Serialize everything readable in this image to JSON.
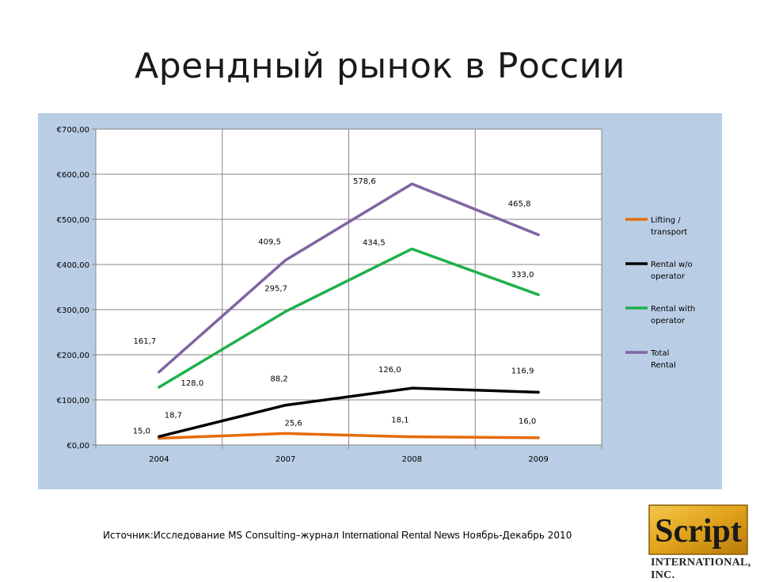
{
  "slide": {
    "title": "Арендный рынок в России",
    "source_part1": "Источник:Исследование MS Consulting–журнал ",
    "source_part2": "International Rental News",
    "source_part3": " Ноябрь-Декабрь 2010"
  },
  "logo": {
    "word": "Script",
    "caption": "INTERNATIONAL, INC."
  },
  "chart_data": {
    "type": "line",
    "categories": [
      "2004",
      "2007",
      "2008",
      "2009"
    ],
    "ylim": [
      0,
      700
    ],
    "yticks": [
      0,
      100,
      200,
      300,
      400,
      500,
      600,
      700
    ],
    "ytick_labels": [
      "€0,00",
      "€100,00",
      "€200,00",
      "€300,00",
      "€400,00",
      "€500,00",
      "€600,00",
      "€700,00"
    ],
    "grid": true,
    "legend": "right",
    "series": [
      {
        "name": "Lifting / transport",
        "values": [
          15.0,
          25.6,
          18.1,
          16.0
        ],
        "labels": [
          "15,0",
          "25,6",
          "18,1",
          "16,0"
        ],
        "color": "#e46c0a"
      },
      {
        "name": "Rental w/o operator",
        "values": [
          18.7,
          88.2,
          126.0,
          116.9
        ],
        "labels": [
          "18,7",
          "88,2",
          "126,0",
          "116,9"
        ],
        "color": "#000000"
      },
      {
        "name": "Rental with operator",
        "values": [
          128.0,
          295.7,
          434.5,
          333.0
        ],
        "labels": [
          "128,0",
          "295,7",
          "434,5",
          "333,0"
        ],
        "color": "#1fb04a"
      },
      {
        "name": "Total Rental",
        "values": [
          161.7,
          409.5,
          578.6,
          465.8
        ],
        "labels": [
          "161,7",
          "409,5",
          "578,6",
          "465,8"
        ],
        "color": "#8064a2"
      }
    ]
  }
}
